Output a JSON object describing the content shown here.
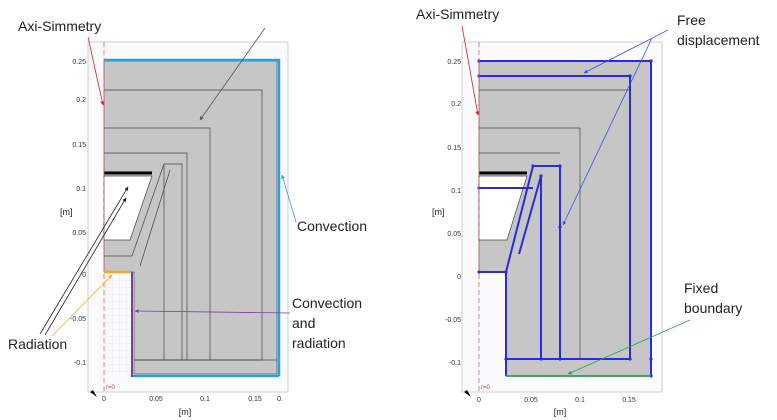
{
  "left_panel": {
    "labels": {
      "axi_symmetry": "Axi-Simmetry",
      "convection": "Convection",
      "convection_radiation_1": "Convection",
      "convection_radiation_2": "and",
      "convection_radiation_3": "radiation",
      "radiation": "Radiation"
    },
    "x_ticks": [
      "0",
      "0.05",
      "0.1",
      "0.15",
      "0."
    ],
    "y_ticks": [
      "0.25",
      "0.2",
      "0.15",
      "0.1",
      "0.05",
      "0",
      "-0.05",
      "-0.1"
    ],
    "x_unit": "[m]",
    "y_unit": "[m]",
    "r_marker": "r=0",
    "colors": {
      "convection": "#29a3dd",
      "radiation": "#f5a623",
      "conv_rad": "#7b3fa0"
    }
  },
  "right_panel": {
    "labels": {
      "axi_symmetry": "Axi-Simmetry",
      "free_displacement_1": "Free",
      "free_displacement_2": "displacement",
      "fixed_boundary_1": "Fixed",
      "fixed_boundary_2": "boundary"
    },
    "x_ticks": [
      "0",
      "0.05",
      "0.1",
      "0.15"
    ],
    "y_ticks": [
      "0.25",
      "0.2",
      "0.15",
      "0.1",
      "0.05",
      "0",
      "-0.05",
      "-0.1"
    ],
    "x_unit": "[m]",
    "y_unit": "[m]",
    "r_marker": "r=0",
    "colors": {
      "free": "#2a2adf",
      "fixed": "#2e9e48"
    }
  }
}
